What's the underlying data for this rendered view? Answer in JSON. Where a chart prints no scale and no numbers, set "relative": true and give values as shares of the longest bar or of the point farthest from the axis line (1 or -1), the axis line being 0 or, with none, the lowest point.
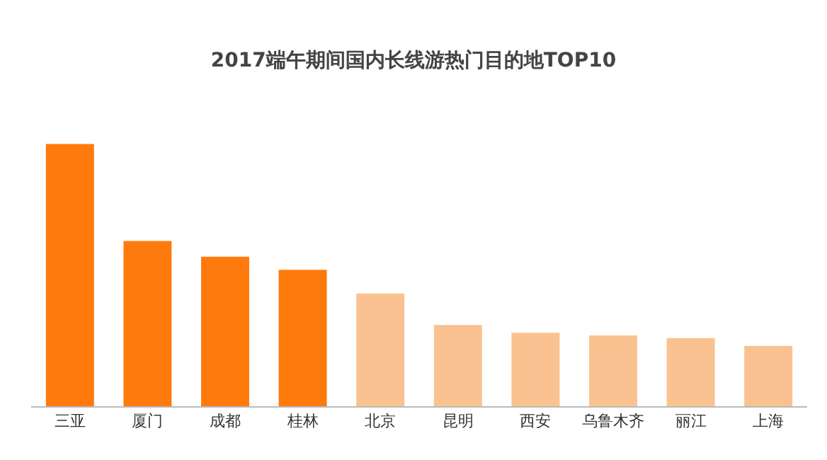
{
  "chart_data": {
    "type": "bar",
    "title": "2017端午期间国内长线游热门目的地TOP10",
    "relative": true,
    "categories": [
      "三亚",
      "厦门",
      "成都",
      "桂林",
      "北京",
      "昆明",
      "西安",
      "乌鲁木齐",
      "丽江",
      "上海"
    ],
    "values": [
      1,
      0.63,
      0.57,
      0.52,
      0.43,
      0.31,
      0.28,
      0.27,
      0.26,
      0.23
    ],
    "colors": [
      "#ff7a0c",
      "#ff7a0c",
      "#ff7a0c",
      "#ff7a0c",
      "#f9c290",
      "#f9c290",
      "#f9c290",
      "#f9c290",
      "#f9c290",
      "#f9c290"
    ]
  }
}
